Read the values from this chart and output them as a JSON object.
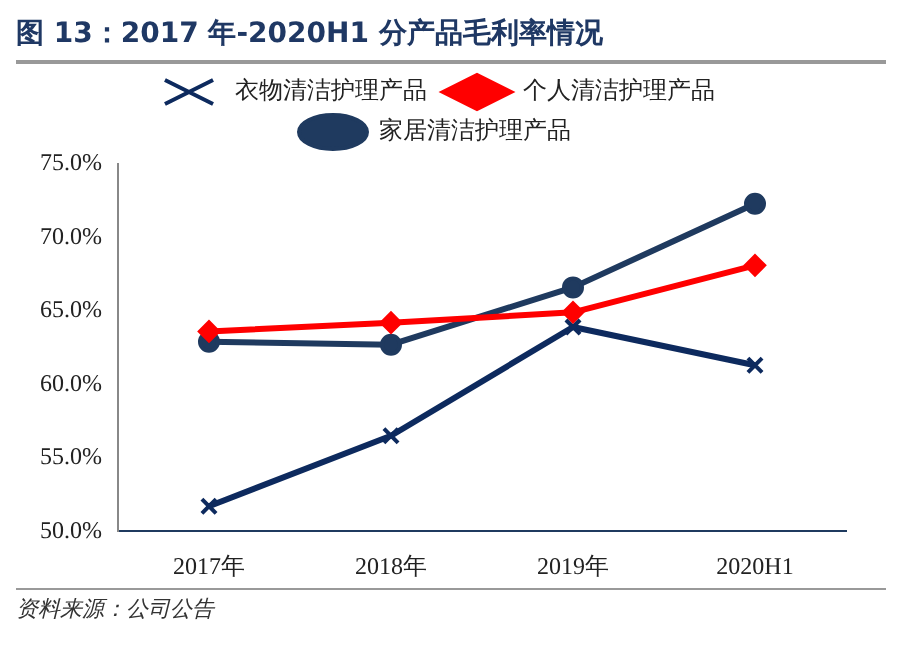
{
  "chart_data": {
    "type": "line",
    "title": "图 13：2017 年-2020H1 分产品毛利率情况",
    "annotations": [
      "资料来源：公司公告"
    ],
    "categories": [
      "2017年",
      "2018年",
      "2019年",
      "2020H1"
    ],
    "series": [
      {
        "name": "衣物清洁护理产品",
        "color": "#0d2a5e",
        "marker": "cross",
        "values": [
          51.7,
          56.5,
          63.9,
          61.3
        ]
      },
      {
        "name": "个人清洁护理产品",
        "color": "#ff0000",
        "marker": "diamond",
        "values": [
          63.6,
          64.2,
          64.9,
          68.1
        ]
      },
      {
        "name": "家居清洁护理产品",
        "color": "#1f3a5f",
        "marker": "circle",
        "values": [
          62.9,
          62.7,
          66.6,
          72.3
        ]
      }
    ],
    "ylim": [
      50,
      75
    ],
    "yticks": [
      {
        "value": 50,
        "label": "50.0%"
      },
      {
        "value": 55,
        "label": "55.0%"
      },
      {
        "value": 60,
        "label": "60.0%"
      },
      {
        "value": 65,
        "label": "65.0%"
      },
      {
        "value": 70,
        "label": "70.0%"
      },
      {
        "value": 75,
        "label": "75.0%"
      }
    ],
    "grid": false,
    "legend": "top"
  }
}
